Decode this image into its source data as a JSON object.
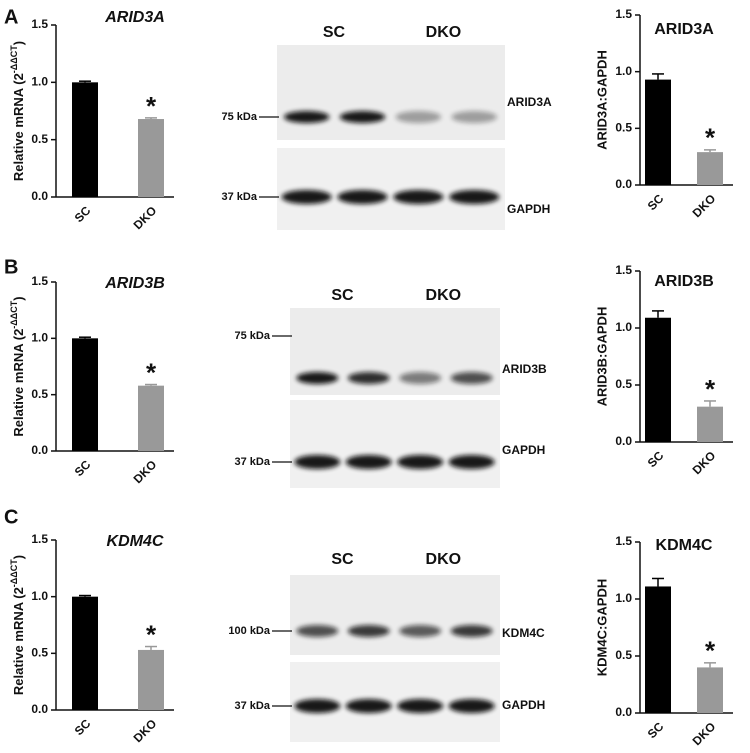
{
  "panel_letters": [
    "A",
    "B",
    "C"
  ],
  "blots": [
    {
      "groups": [
        "SC",
        "DKO"
      ],
      "top_marker": "75 kDa",
      "top_label": "ARID3A",
      "bottom_marker": "37 kDa",
      "bottom_label": "GAPDH"
    },
    {
      "groups": [
        "SC",
        "DKO"
      ],
      "top_marker": "75 kDa",
      "top_label": "ARID3B",
      "bottom_marker": "37 kDa",
      "bottom_label": "GAPDH"
    },
    {
      "groups": [
        "SC",
        "DKO"
      ],
      "top_marker": "100 kDa",
      "top_label": "KDM4C",
      "bottom_marker": "37 kDa",
      "bottom_label": "GAPDH"
    }
  ],
  "chart_data": [
    {
      "type": "bar",
      "title": "ARID3A",
      "ylabel": {
        "text": "Relative mRNA (2",
        "superscript": "-ΔΔCT",
        "suffix": ")"
      },
      "categories": [
        "SC",
        "DKO"
      ],
      "values": [
        1.0,
        0.68
      ],
      "errors": [
        0.01,
        0.01
      ],
      "colors": [
        "#000000",
        "#999999"
      ],
      "value_annotations": [
        null,
        "*"
      ],
      "ylim": [
        0,
        1.5
      ],
      "yticks": [
        {
          "value": 0,
          "label": "0.0"
        },
        {
          "value": 0.5,
          "label": "0.5"
        },
        {
          "value": 1,
          "label": "1.0"
        },
        {
          "value": 1.5,
          "label": "1.5"
        }
      ]
    },
    {
      "type": "bar",
      "title": "ARID3A",
      "ylabel": "ARID3A:GAPDH",
      "categories": [
        "SC",
        "DKO"
      ],
      "values": [
        0.93,
        0.29
      ],
      "errors": [
        0.05,
        0.02
      ],
      "colors": [
        "#000000",
        "#999999"
      ],
      "value_annotations": [
        null,
        "*"
      ],
      "ylim": [
        0,
        1.5
      ],
      "yticks": [
        {
          "value": 0,
          "label": "0.0"
        },
        {
          "value": 0.5,
          "label": "0.5"
        },
        {
          "value": 1,
          "label": "1.0"
        },
        {
          "value": 1.5,
          "label": "1.5"
        }
      ]
    },
    {
      "type": "bar",
      "title": "ARID3B",
      "ylabel": {
        "text": "Relative mRNA (2",
        "superscript": "-ΔΔCT",
        "suffix": ")"
      },
      "categories": [
        "SC",
        "DKO"
      ],
      "values": [
        1.0,
        0.58
      ],
      "errors": [
        0.01,
        0.01
      ],
      "colors": [
        "#000000",
        "#999999"
      ],
      "value_annotations": [
        null,
        "*"
      ],
      "ylim": [
        0,
        1.5
      ],
      "yticks": [
        {
          "value": 0,
          "label": "0.0"
        },
        {
          "value": 0.5,
          "label": "0.5"
        },
        {
          "value": 1,
          "label": "1.0"
        },
        {
          "value": 1.5,
          "label": "1.5"
        }
      ]
    },
    {
      "type": "bar",
      "title": "ARID3B",
      "ylabel": "ARID3B:GAPDH",
      "categories": [
        "SC",
        "DKO"
      ],
      "values": [
        1.09,
        0.31
      ],
      "errors": [
        0.06,
        0.05
      ],
      "colors": [
        "#000000",
        "#999999"
      ],
      "value_annotations": [
        null,
        "*"
      ],
      "ylim": [
        0,
        1.5
      ],
      "yticks": [
        {
          "value": 0,
          "label": "0.0"
        },
        {
          "value": 0.5,
          "label": "0.5"
        },
        {
          "value": 1,
          "label": "1.0"
        },
        {
          "value": 1.5,
          "label": "1.5"
        }
      ]
    },
    {
      "type": "bar",
      "title": "KDM4C",
      "ylabel": {
        "text": "Relative mRNA (2",
        "superscript": "-ΔΔCT",
        "suffix": ")"
      },
      "categories": [
        "SC",
        "DKO"
      ],
      "values": [
        1.0,
        0.53
      ],
      "errors": [
        0.01,
        0.03
      ],
      "colors": [
        "#000000",
        "#999999"
      ],
      "value_annotations": [
        null,
        "*"
      ],
      "ylim": [
        0,
        1.5
      ],
      "yticks": [
        {
          "value": 0,
          "label": "0.0"
        },
        {
          "value": 0.5,
          "label": "0.5"
        },
        {
          "value": 1,
          "label": "1.0"
        },
        {
          "value": 1.5,
          "label": "1.5"
        }
      ]
    },
    {
      "type": "bar",
      "title": "KDM4C",
      "ylabel": "KDM4C:GAPDH",
      "categories": [
        "SC",
        "DKO"
      ],
      "values": [
        1.11,
        0.4
      ],
      "errors": [
        0.07,
        0.04
      ],
      "colors": [
        "#000000",
        "#999999"
      ],
      "value_annotations": [
        null,
        "*"
      ],
      "ylim": [
        0,
        1.5
      ],
      "yticks": [
        {
          "value": 0,
          "label": "0.0"
        },
        {
          "value": 0.5,
          "label": "0.5"
        },
        {
          "value": 1,
          "label": "1.0"
        },
        {
          "value": 1.5,
          "label": "1.5"
        }
      ]
    }
  ]
}
